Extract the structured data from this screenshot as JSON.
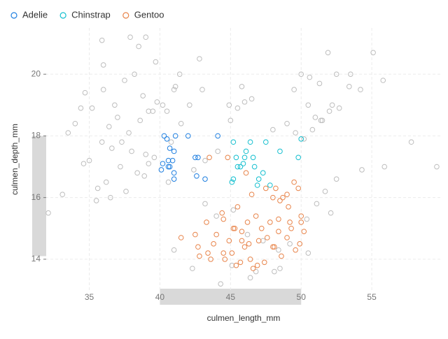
{
  "chart_data": {
    "type": "scatter",
    "x_label": "culmen_length_mm",
    "y_label": "culmen_depth_mm",
    "xlim": [
      31.9,
      60
    ],
    "ylim": [
      13.0,
      21.5
    ],
    "xticks": [
      35,
      40,
      45,
      50,
      55
    ],
    "yticks": [
      14,
      16,
      18,
      20
    ],
    "grid": true,
    "legend": "top-left",
    "brush_x": [
      40,
      50
    ],
    "brush_y": [
      14.1,
      18
    ],
    "background": {
      "color": "#bdbdbd",
      "x": [
        34.7,
        35.2,
        36.0,
        36.8,
        37.5,
        38.2,
        38.8,
        39.5,
        40.2,
        41.0,
        36.4,
        37.0,
        37.8,
        38.6,
        39.2,
        39.8,
        40.5,
        41.5,
        42.1,
        43.0,
        33.5,
        34.0,
        34.4,
        35.9,
        36.6,
        37.3,
        38.0,
        39.0,
        39.6,
        40.8,
        37.2,
        38.4,
        39.2,
        40.6,
        42.4,
        43.2,
        44.1,
        45.0,
        45.5,
        46.0,
        35.0,
        36.2,
        37.6,
        38.9,
        36.5,
        35.5,
        34.6,
        33.1,
        32.1,
        35.6,
        39.7,
        41.4,
        42.8,
        44.9,
        39.0,
        38.5,
        36.0,
        35.9,
        37.9,
        41.1,
        49.5,
        50.5,
        51.3,
        52.0,
        52.7,
        53.5,
        54.2,
        55.8,
        51.5,
        50.8,
        49.6,
        50.2,
        51.0,
        52.2,
        50.0,
        49.0,
        46.5,
        45.8,
        48.0,
        51.9,
        50.6,
        51.4,
        52.5,
        53.4,
        55.1,
        57.8,
        59.6,
        55.9,
        54.3,
        51.7,
        43.2,
        44.0,
        45.2,
        46.2,
        47.3,
        48.4,
        49.2,
        50.4,
        51.1,
        52.5,
        45.1,
        46.8,
        48.5,
        50.5,
        52.1,
        42.3,
        44.3,
        46.4,
        48.1,
        41.0
      ],
      "values": [
        19.4,
        18.9,
        19.5,
        19.0,
        19.8,
        20.0,
        19.3,
        18.8,
        19.0,
        19.5,
        18.3,
        18.6,
        18.1,
        18.5,
        18.8,
        19.1,
        18.8,
        18.4,
        19.0,
        19.5,
        18.1,
        18.4,
        18.9,
        17.8,
        17.6,
        17.8,
        17.5,
        17.4,
        17.3,
        17.8,
        17.0,
        16.8,
        17.1,
        16.5,
        16.9,
        17.2,
        17.5,
        18.5,
        18.9,
        19.1,
        17.2,
        16.5,
        16.2,
        16.7,
        16.0,
        15.9,
        17.1,
        16.1,
        15.5,
        16.3,
        20.4,
        20.0,
        20.5,
        19.0,
        21.2,
        20.9,
        20.3,
        21.1,
        21.2,
        19.6,
        19.5,
        19.0,
        19.7,
        18.8,
        18.9,
        20.0,
        19.5,
        19.8,
        18.5,
        18.2,
        18.1,
        17.9,
        18.6,
        19.0,
        20.0,
        18.4,
        19.2,
        19.6,
        18.2,
        20.7,
        19.9,
        18.5,
        20.0,
        19.6,
        20.7,
        17.8,
        17.0,
        17.0,
        16.9,
        16.2,
        15.8,
        15.4,
        15.6,
        14.8,
        14.6,
        14.3,
        14.5,
        15.3,
        15.8,
        16.6,
        13.8,
        13.6,
        13.7,
        14.2,
        15.5,
        13.7,
        13.2,
        13.4,
        13.6,
        14.3
      ]
    },
    "series": [
      {
        "name": "Adelie",
        "color": "#1f7fe0",
        "x": [
          40.3,
          40.5,
          41.1,
          42.0,
          44.1,
          40.7,
          41.0,
          40.9,
          40.6,
          40.2,
          40.1,
          40.6,
          41.0,
          41.0,
          42.7,
          42.5,
          42.6,
          43.2,
          40.7
        ],
        "values": [
          18.0,
          17.9,
          18.0,
          18.0,
          18.0,
          17.6,
          17.5,
          17.2,
          17.2,
          17.1,
          16.9,
          17.0,
          16.8,
          16.6,
          17.3,
          17.3,
          16.7,
          16.6,
          17.0
        ]
      },
      {
        "name": "Chinstrap",
        "color": "#13bfcf",
        "x": [
          45.2,
          46.1,
          46.4,
          47.5,
          48.5,
          50.0,
          45.4,
          45.5,
          45.7,
          46.0,
          46.6,
          46.7,
          45.9,
          47.0,
          47.3,
          47.8,
          45.2,
          45.1,
          46.9,
          49.8
        ],
        "values": [
          17.8,
          17.5,
          17.8,
          17.8,
          17.5,
          17.9,
          17.3,
          17.0,
          17.0,
          17.3,
          17.3,
          17.0,
          17.1,
          16.6,
          16.8,
          16.4,
          16.6,
          16.5,
          16.4,
          17.3
        ]
      },
      {
        "name": "Gentoo",
        "color": "#e8844a",
        "x": [
          43.5,
          44.8,
          46.1,
          47.5,
          48.0,
          48.2,
          48.5,
          49.0,
          49.5,
          49.8,
          49.1,
          48.7,
          46.5,
          45.5,
          44.5,
          43.3,
          42.5,
          41.5,
          45.2,
          46.3,
          47.2,
          47.8,
          48.4,
          49.3,
          50.0,
          46.8,
          45.8,
          44.9,
          44.0,
          43.8,
          42.7,
          45.1,
          46.0,
          47.0,
          48.1,
          49.0,
          49.9,
          50.2,
          46.4,
          45.7,
          44.6,
          43.4,
          42.8,
          45.4,
          46.6,
          47.4,
          48.6,
          49.6,
          50.0,
          46.2,
          45.3,
          44.4,
          48.4,
          49.2,
          47.6,
          45.8,
          43.6,
          44.5,
          46.9,
          48.0
        ],
        "values": [
          17.3,
          17.3,
          16.8,
          16.3,
          16.0,
          16.3,
          15.9,
          16.1,
          16.5,
          16.3,
          15.7,
          16.0,
          16.1,
          15.7,
          15.3,
          15.2,
          14.8,
          14.7,
          15.0,
          14.5,
          15.0,
          15.2,
          15.3,
          15.0,
          15.4,
          15.4,
          14.9,
          14.6,
          14.8,
          14.5,
          14.4,
          14.2,
          14.4,
          14.6,
          14.4,
          14.7,
          14.5,
          14.9,
          14.0,
          13.9,
          14.0,
          14.2,
          14.1,
          13.8,
          13.7,
          13.9,
          14.1,
          14.3,
          15.2,
          15.2,
          15.0,
          15.5,
          14.9,
          15.2,
          14.7,
          14.6,
          14.0,
          14.2,
          13.8,
          14.4
        ]
      }
    ]
  }
}
